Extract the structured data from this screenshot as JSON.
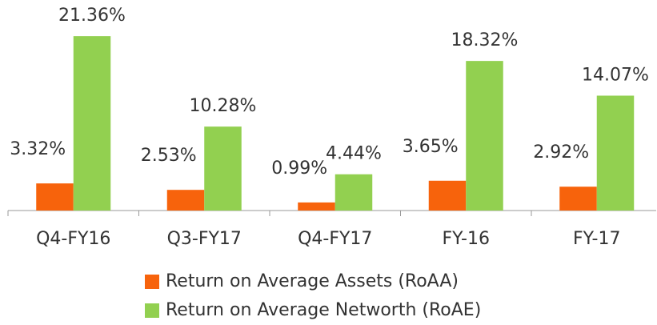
{
  "chart_data": {
    "type": "bar",
    "categories": [
      "Q4-FY16",
      "Q3-FY17",
      "Q4-FY17",
      "FY-16",
      "FY-17"
    ],
    "series": [
      {
        "name": "Return on Average Assets (RoAA)",
        "color": "#f7630c",
        "values": [
          3.32,
          2.53,
          0.99,
          3.65,
          2.92
        ],
        "value_labels": [
          "3.32%",
          "2.53%",
          "0.99%",
          "3.65%",
          "2.92%"
        ]
      },
      {
        "name": "Return on Average Networth (RoAE)",
        "color": "#92d050",
        "values": [
          21.36,
          10.28,
          4.44,
          18.32,
          14.07
        ],
        "value_labels": [
          "21.36%",
          "10.28%",
          "4.44%",
          "18.32%",
          "14.07%"
        ]
      }
    ]
  }
}
